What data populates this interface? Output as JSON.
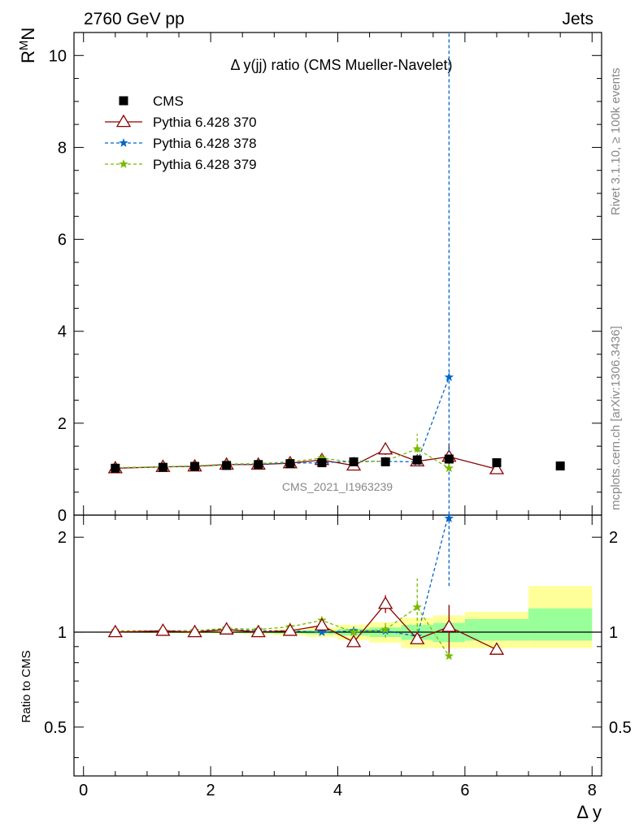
{
  "header": {
    "left": "2760 GeV pp",
    "right": "Jets"
  },
  "side": {
    "rivet": "Rivet 3.1.10, ≥ 100k events",
    "mcplots": "mcplots.cern.ch [arXiv:1306.3436]"
  },
  "chart_data": [
    {
      "type": "scatter",
      "title": "Δ y(jj) ratio (CMS Mueller-Navelet)",
      "watermark": "CMS_2021_I1963239",
      "xlabel": "Δ y",
      "ylabel": "R^M N",
      "ylabel_main": "R",
      "ylabel_sup": "M",
      "ylabel_sub": "N",
      "xlim": [
        -0.15,
        8.15
      ],
      "ylim": [
        0,
        10.5
      ],
      "yticks": [
        0,
        2,
        4,
        6,
        8,
        10
      ],
      "xticks": [
        0,
        2,
        4,
        6,
        8
      ],
      "legend_position": "top-left",
      "series": [
        {
          "name": "CMS",
          "color": "#000000",
          "marker": "square",
          "x": [
            0.5,
            1.25,
            1.75,
            2.25,
            2.75,
            3.25,
            3.75,
            4.25,
            4.75,
            5.25,
            5.75,
            6.5,
            7.5
          ],
          "y": [
            1.02,
            1.04,
            1.06,
            1.08,
            1.1,
            1.12,
            1.14,
            1.16,
            1.16,
            1.2,
            1.22,
            1.14,
            1.07
          ]
        },
        {
          "name": "Pythia 6.428 370",
          "color": "#8b0000",
          "marker": "open-triangle",
          "dash": "solid",
          "x": [
            0.5,
            1.25,
            1.75,
            2.25,
            2.75,
            3.25,
            3.75,
            4.25,
            4.75,
            5.25,
            5.75,
            6.5
          ],
          "y": [
            1.02,
            1.05,
            1.06,
            1.1,
            1.1,
            1.13,
            1.2,
            1.08,
            1.43,
            1.17,
            1.27,
            1.0
          ],
          "err": [
            0,
            0,
            0,
            0,
            0,
            0,
            0.03,
            0,
            0.12,
            0,
            0.28,
            0
          ]
        },
        {
          "name": "Pythia 6.428 378",
          "color": "#0066cc",
          "marker": "star",
          "dash": "dashed",
          "x": [
            0.5,
            1.25,
            1.75,
            2.25,
            2.75,
            3.25,
            3.75,
            4.25,
            4.75,
            5.25,
            5.75
          ],
          "y": [
            1.03,
            1.05,
            1.07,
            1.1,
            1.11,
            1.13,
            1.14,
            1.17,
            1.17,
            1.16,
            3.0
          ],
          "err": [
            0,
            0,
            0,
            0,
            0,
            0,
            0,
            0,
            0,
            0,
            11
          ]
        },
        {
          "name": "Pythia 6.428 379",
          "color": "#77bb00",
          "marker": "star",
          "dash": "dashed",
          "x": [
            0.5,
            1.25,
            1.75,
            2.25,
            2.75,
            3.25,
            3.75,
            4.25,
            4.75,
            5.25,
            5.75
          ],
          "y": [
            1.03,
            1.05,
            1.07,
            1.11,
            1.12,
            1.16,
            1.24,
            1.15,
            1.18,
            1.44,
            1.02
          ],
          "err": [
            0,
            0,
            0,
            0,
            0,
            0,
            0.03,
            0,
            0.07,
            0.33,
            0
          ]
        }
      ]
    },
    {
      "type": "scatter",
      "ylabel": "Ratio to CMS",
      "ylim": [
        0.35,
        2.35
      ],
      "yticks": [
        0.5,
        1,
        2
      ],
      "ytick_labels": [
        "0.5",
        "1",
        "2"
      ],
      "log_y": true,
      "bands": [
        {
          "x0": 0.1,
          "x1": 1.0,
          "y1": [
            0.998,
            1.002
          ],
          "y2": [
            0.996,
            1.004
          ]
        },
        {
          "x0": 1.0,
          "x1": 1.5,
          "y1": [
            0.997,
            1.003
          ],
          "y2": [
            0.994,
            1.006
          ]
        },
        {
          "x0": 1.5,
          "x1": 2.0,
          "y1": [
            0.996,
            1.004
          ],
          "y2": [
            0.992,
            1.008
          ]
        },
        {
          "x0": 2.0,
          "x1": 2.5,
          "y1": [
            0.995,
            1.005
          ],
          "y2": [
            0.99,
            1.01
          ]
        },
        {
          "x0": 2.5,
          "x1": 3.0,
          "y1": [
            0.993,
            1.007
          ],
          "y2": [
            0.985,
            1.015
          ]
        },
        {
          "x0": 3.0,
          "x1": 3.5,
          "y1": [
            0.99,
            1.01
          ],
          "y2": [
            0.978,
            1.022
          ]
        },
        {
          "x0": 3.5,
          "x1": 4.0,
          "y1": [
            0.985,
            1.015
          ],
          "y2": [
            0.965,
            1.035
          ]
        },
        {
          "x0": 4.0,
          "x1": 4.5,
          "y1": [
            0.975,
            1.025
          ],
          "y2": [
            0.945,
            1.055
          ]
        },
        {
          "x0": 4.5,
          "x1": 5.0,
          "y1": [
            0.965,
            1.035
          ],
          "y2": [
            0.925,
            1.075
          ]
        },
        {
          "x0": 5.0,
          "x1": 5.5,
          "y1": [
            0.945,
            1.055
          ],
          "y2": [
            0.89,
            1.11
          ]
        },
        {
          "x0": 5.5,
          "x1": 6.0,
          "y1": [
            0.93,
            1.07
          ],
          "y2": [
            0.89,
            1.13
          ]
        },
        {
          "x0": 6.0,
          "x1": 7.0,
          "y1": [
            0.94,
            1.1
          ],
          "y2": [
            0.89,
            1.16
          ]
        },
        {
          "x0": 7.0,
          "x1": 8.0,
          "y1": [
            0.94,
            1.19
          ],
          "y2": [
            0.89,
            1.4
          ]
        }
      ],
      "series": [
        {
          "name": "Pythia 6.428 370",
          "color": "#8b0000",
          "x": [
            0.5,
            1.25,
            1.75,
            2.25,
            2.75,
            3.25,
            3.75,
            4.25,
            4.75,
            5.25,
            5.75,
            6.5
          ],
          "y": [
            1.0,
            1.01,
            1.0,
            1.02,
            1.0,
            1.01,
            1.05,
            0.93,
            1.23,
            0.95,
            1.04,
            0.88
          ],
          "err": [
            0,
            0,
            0,
            0,
            0,
            0,
            0,
            0,
            0.08,
            0,
            0.18,
            0
          ]
        },
        {
          "name": "Pythia 6.428 378",
          "color": "#0066cc",
          "x": [
            0.5,
            1.25,
            1.75,
            2.25,
            2.75,
            3.25,
            3.75,
            4.25,
            4.75,
            5.25,
            5.75
          ],
          "y": [
            1.0,
            1.01,
            1.01,
            1.02,
            1.01,
            1.01,
            1.0,
            1.01,
            1.01,
            0.97,
            2.4
          ],
          "err": [
            0,
            0,
            0,
            0,
            0,
            0,
            0,
            0,
            0,
            0.03,
            1.0
          ]
        },
        {
          "name": "Pythia 6.428 379",
          "color": "#77bb00",
          "x": [
            0.5,
            1.25,
            1.75,
            2.25,
            2.75,
            3.25,
            3.75,
            4.25,
            4.75,
            5.25,
            5.75
          ],
          "y": [
            1.01,
            1.01,
            1.01,
            1.03,
            1.02,
            1.04,
            1.09,
            1.0,
            1.02,
            1.2,
            0.84
          ],
          "err": [
            0,
            0,
            0,
            0,
            0,
            0,
            0.02,
            0,
            0.06,
            0.28,
            0
          ]
        }
      ]
    }
  ]
}
